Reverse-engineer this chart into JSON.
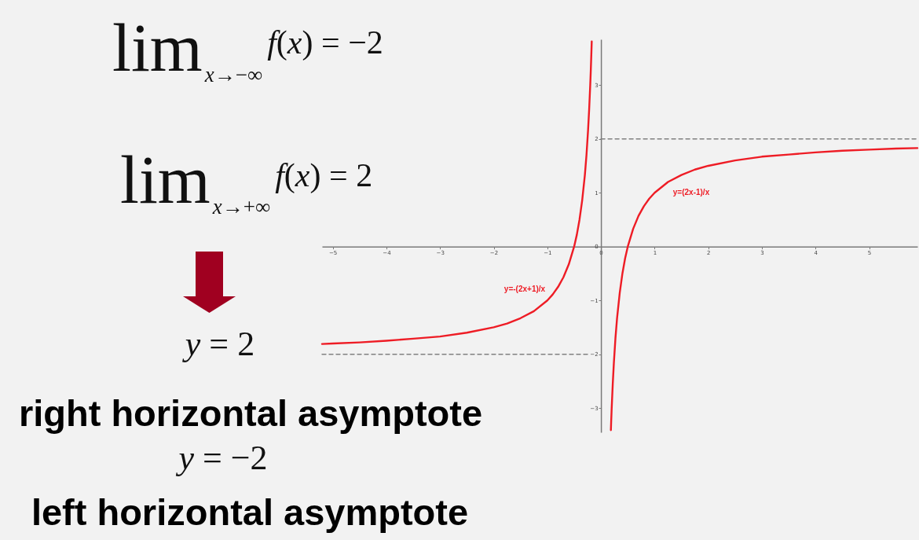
{
  "chart_data": {
    "type": "line",
    "xlim": [
      -5.2,
      5.9
    ],
    "xticks": [
      -5,
      -4,
      -3,
      -2,
      -1,
      0,
      1,
      2,
      3,
      4,
      5
    ],
    "ylim": [
      -3.45,
      3.85
    ],
    "yticks": [
      -3,
      -2,
      -1,
      0,
      1,
      2,
      3
    ],
    "series": [
      {
        "color": "#ee1c25",
        "x": [
          -5.2,
          -5,
          -4.5,
          -4,
          -3.5,
          -3,
          -2.5,
          -2,
          -1.75,
          -1.5,
          -1.25,
          -1,
          -0.9,
          -0.8,
          -0.7,
          -0.6,
          -0.5,
          -0.45,
          -0.4,
          -0.35,
          -0.3,
          -0.27,
          -0.24,
          -0.22,
          -0.2,
          -0.19,
          -0.18,
          -0.172
        ],
        "values": [
          -1.81,
          -1.8,
          -1.78,
          -1.75,
          -1.71,
          -1.67,
          -1.6,
          -1.5,
          -1.43,
          -1.33,
          -1.2,
          -1,
          -0.89,
          -0.75,
          -0.57,
          -0.33,
          0,
          0.22,
          0.5,
          0.86,
          1.33,
          1.7,
          2.17,
          2.55,
          3,
          3.26,
          3.56,
          3.81
        ]
      },
      {
        "color": "#ee1c25",
        "x": [
          0.185,
          0.19,
          0.2,
          0.22,
          0.24,
          0.27,
          0.3,
          0.35,
          0.4,
          0.45,
          0.5,
          0.6,
          0.7,
          0.8,
          0.9,
          1,
          1.25,
          1.5,
          1.75,
          2,
          2.5,
          3,
          3.5,
          4,
          4.5,
          5,
          5.5,
          5.9
        ],
        "values": [
          -3.41,
          -3.26,
          -3,
          -2.55,
          -2.17,
          -1.7,
          -1.33,
          -0.86,
          -0.5,
          -0.22,
          0,
          0.33,
          0.57,
          0.75,
          0.89,
          1,
          1.2,
          1.33,
          1.43,
          1.5,
          1.6,
          1.67,
          1.71,
          1.75,
          1.78,
          1.8,
          1.82,
          1.83
        ]
      },
      {
        "color": "#808080",
        "line_style": "dashed",
        "x": [
          0,
          5.9
        ],
        "values": [
          2,
          2
        ]
      },
      {
        "color": "#808080",
        "line_style": "dashed",
        "x": [
          -5.2,
          -0.25
        ],
        "values": [
          -2,
          -2
        ]
      }
    ],
    "annotations": [
      "lim$_{x→−∞}$f(x) = −2",
      "lim$_{x→+∞}$f(x) = 2",
      "y = 2",
      "right horizontal asymptote",
      "y = −2",
      "left horizontal asymptote",
      "y=-(2x+1)/x",
      "y=(2x-1)/x"
    ]
  }
}
